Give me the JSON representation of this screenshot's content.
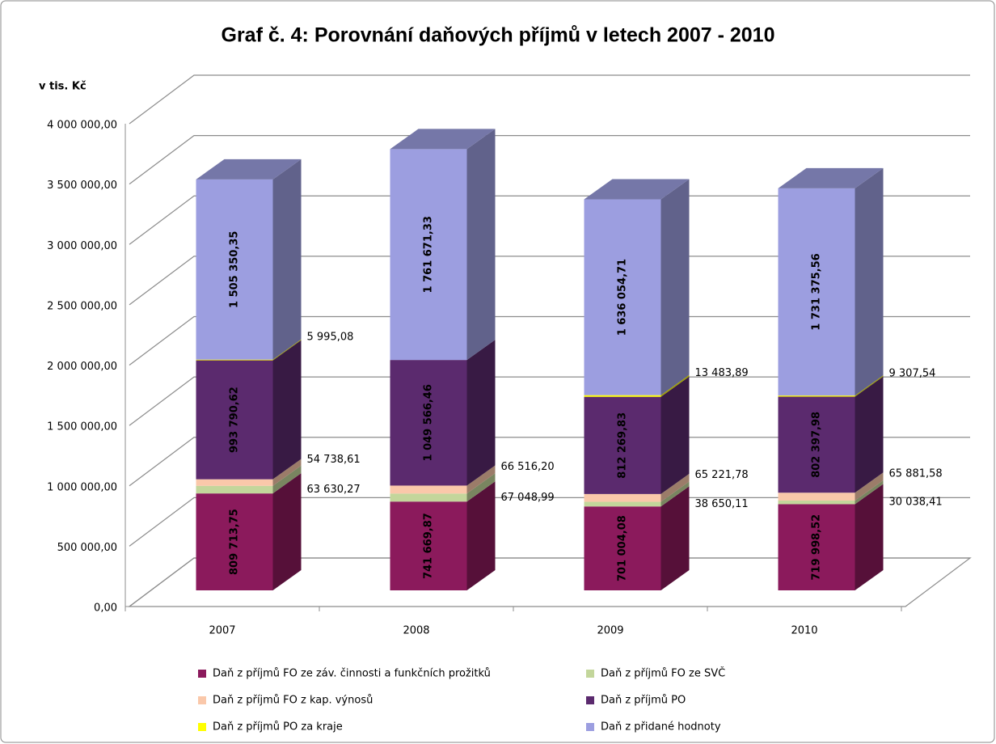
{
  "chart_data": {
    "type": "bar3d_stacked",
    "title": "Graf č. 4: Porovnání daňových příjmů v letech 2007 - 2010",
    "y_label": "v tis. Kč",
    "categories": [
      "2007",
      "2008",
      "2009",
      "2010"
    ],
    "ylim": [
      0,
      4000000
    ],
    "yticks": [
      {
        "value": 0,
        "label": "0,00"
      },
      {
        "value": 500000,
        "label": "500 000,00"
      },
      {
        "value": 1000000,
        "label": "1 000 000,00"
      },
      {
        "value": 1500000,
        "label": "1 500 000,00"
      },
      {
        "value": 2000000,
        "label": "2 000 000,00"
      },
      {
        "value": 2500000,
        "label": "2 500 000,00"
      },
      {
        "value": 3000000,
        "label": "3 000 000,00"
      },
      {
        "value": 3500000,
        "label": "3 500 000,00"
      },
      {
        "value": 4000000,
        "label": "4 000 000,00"
      }
    ],
    "grid": true,
    "legend": "bottom",
    "series": [
      {
        "name": "Daň z příjmů FO ze záv. činnosti a funkčních prožitků",
        "color": "#8b1a5c",
        "values": [
          809713.75,
          741669.87,
          701004.08,
          719998.52
        ],
        "value_labels": [
          "809 713,75",
          "741 669,87",
          "701 004,08",
          "719 998,52"
        ]
      },
      {
        "name": "Daň z příjmů FO ze SVČ",
        "color": "#c3d69b",
        "values": [
          63630.27,
          67048.99,
          38650.11,
          30038.41
        ],
        "value_labels": [
          "63 630,27",
          "67 048,99",
          "38 650,11",
          "30 038,41"
        ]
      },
      {
        "name": "Daň z příjmů FO z kap. výnosů",
        "color": "#fac8aa",
        "values": [
          54738.61,
          66516.2,
          65221.78,
          65881.58
        ],
        "value_labels": [
          "54 738,61",
          "66 516,20",
          "65 221,78",
          "65 881,58"
        ]
      },
      {
        "name": "Daň z příjmů PO",
        "color": "#5b2a6e",
        "values": [
          993790.62,
          1049566.46,
          812269.83,
          802397.98
        ],
        "value_labels": [
          "993 790,62",
          "1 049 566,46",
          "812 269,83",
          "802 397,98"
        ]
      },
      {
        "name": "Daň z příjmů PO za kraje",
        "color": "#ffff00",
        "values": [
          5995.08,
          null,
          13483.89,
          9307.54
        ],
        "value_labels": [
          "5 995,08",
          null,
          "13 483,89",
          "9 307,54"
        ]
      },
      {
        "name": "Daň z přidané hodnoty",
        "color": "#9c9ee0",
        "values": [
          1505350.35,
          1761671.33,
          1636054.71,
          1731375.56
        ],
        "value_labels": [
          "1 505 350,35",
          "1 761 671,33",
          "1 636 054,71",
          "1 731 375,56"
        ]
      }
    ]
  }
}
